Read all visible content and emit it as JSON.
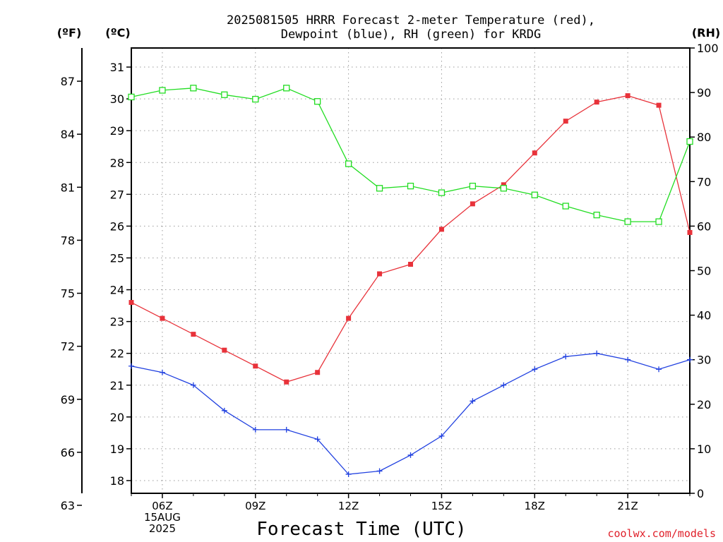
{
  "chart_data": {
    "type": "line",
    "title_line1": "2025081505 HRRR Forecast 2-meter Temperature (red),",
    "title_line2": "Dewpoint (blue), RH (green) for KRDG",
    "xlabel": "Forecast Time (UTC)",
    "credit": "coolwx.com/models",
    "units": {
      "fahrenheit": "(ºF)",
      "celsius": "(ºC)",
      "rh": "(RH)"
    },
    "x_hours": [
      5,
      6,
      7,
      8,
      9,
      10,
      11,
      12,
      13,
      14,
      15,
      16,
      17,
      18,
      19,
      20,
      21,
      22,
      23
    ],
    "xlim": [
      5,
      23
    ],
    "x_ticks": [
      {
        "hour": 6,
        "lines": [
          "06Z",
          "15AUG",
          "2025"
        ]
      },
      {
        "hour": 9,
        "lines": [
          "09Z"
        ]
      },
      {
        "hour": 12,
        "lines": [
          "12Z"
        ]
      },
      {
        "hour": 15,
        "lines": [
          "15Z"
        ]
      },
      {
        "hour": 18,
        "lines": [
          "18Z"
        ]
      },
      {
        "hour": 21,
        "lines": [
          "21Z"
        ]
      }
    ],
    "celsius_axis": {
      "ylim": [
        17.6,
        31.6
      ],
      "ticks": [
        18,
        19,
        20,
        21,
        22,
        23,
        24,
        25,
        26,
        27,
        28,
        29,
        30,
        31
      ]
    },
    "fahrenheit_axis": {
      "ticks": [
        63,
        66,
        69,
        72,
        75,
        78,
        81,
        84,
        87
      ]
    },
    "rh_axis": {
      "ylim": [
        0,
        100
      ],
      "ticks": [
        0,
        10,
        20,
        30,
        40,
        50,
        60,
        70,
        80,
        90,
        100
      ]
    },
    "grid": true,
    "series": [
      {
        "name": "Temperature",
        "axis": "celsius",
        "color": "#e8323a",
        "marker": "filled-square",
        "values": [
          23.6,
          23.1,
          22.6,
          22.1,
          21.6,
          21.1,
          21.4,
          23.1,
          24.5,
          24.8,
          25.9,
          26.7,
          27.3,
          28.3,
          29.3,
          29.9,
          30.1,
          29.8,
          25.8
        ]
      },
      {
        "name": "Dewpoint",
        "axis": "celsius",
        "color": "#2040e0",
        "marker": "plus",
        "values": [
          21.6,
          21.4,
          21.0,
          20.2,
          19.6,
          19.6,
          19.3,
          18.2,
          18.3,
          18.8,
          19.4,
          20.5,
          21.0,
          21.5,
          21.9,
          22.0,
          21.8,
          21.5,
          21.8
        ]
      },
      {
        "name": "RH",
        "axis": "rh",
        "color": "#22dd22",
        "marker": "open-square",
        "values": [
          89,
          90.5,
          91,
          89.5,
          88.5,
          91,
          88,
          74,
          68.5,
          69,
          67.5,
          69,
          68.5,
          67,
          64.5,
          62.5,
          61,
          61,
          79
        ]
      }
    ]
  }
}
